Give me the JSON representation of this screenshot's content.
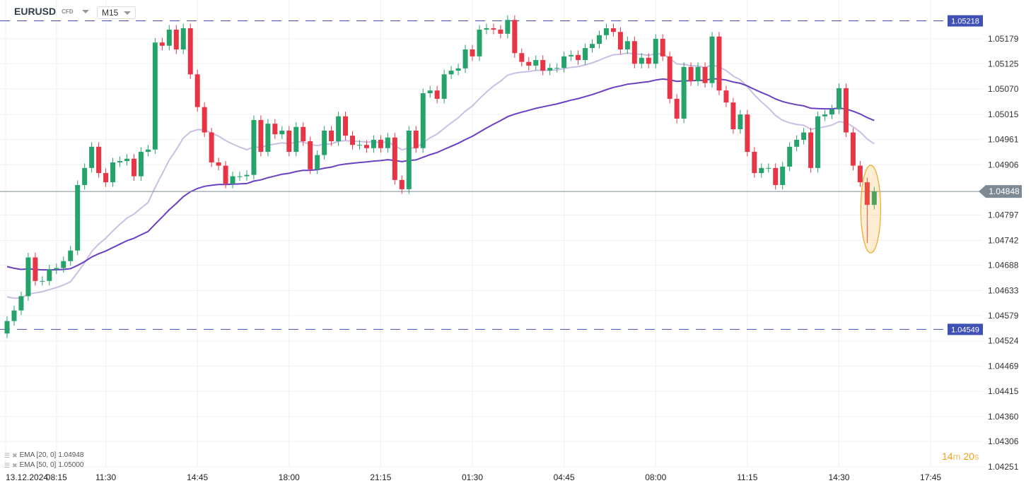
{
  "header": {
    "symbol": "EURUSD",
    "instrument_type": "CFD",
    "timeframe": "M15"
  },
  "indicators": [
    {
      "label": "EMA [20, 0]",
      "value": "1.04948",
      "color": "#c8bfe3"
    },
    {
      "label": "EMA [50, 0]",
      "value": "1.05000",
      "color": "#6a3fc2"
    }
  ],
  "timer": {
    "minutes": "14",
    "min_unit": "m",
    "seconds": "20",
    "sec_unit": "s"
  },
  "colors": {
    "up": "#26a36b",
    "down": "#e83545",
    "level": "#3f51b5",
    "current": "#7d8a93",
    "highlight": "#f5a623"
  },
  "chart_data": {
    "type": "candlestick",
    "symbol": "EURUSD",
    "interval": "15m",
    "ylim": [
      1.0423,
      1.0526
    ],
    "y_ticks": [
      "1.05179",
      "1.05125",
      "1.05070",
      "1.05015",
      "1.04961",
      "1.04906",
      "1.04797",
      "1.04742",
      "1.04688",
      "1.04633",
      "1.04579",
      "1.04524",
      "1.04469",
      "1.04415",
      "1.04360",
      "1.04306",
      "1.04251"
    ],
    "x_ticks": [
      {
        "index": 7,
        "label": "08:15",
        "date": "13.12.2024"
      },
      {
        "index": 14,
        "label": "11:30"
      },
      {
        "index": 27,
        "label": "14:45"
      },
      {
        "index": 40,
        "label": "18:00"
      },
      {
        "index": 53,
        "label": "21:15"
      },
      {
        "index": 66,
        "label": "01:30"
      },
      {
        "index": 79,
        "label": "04:45"
      },
      {
        "index": 92,
        "label": "08:00"
      },
      {
        "index": 105,
        "label": "11:15"
      },
      {
        "index": 118,
        "label": "14:30"
      },
      {
        "index": 131,
        "label": "17:45"
      }
    ],
    "first_open": 1.0454,
    "wick": 0.0001,
    "closes": [
      1.04567,
      1.0459,
      1.04621,
      1.04705,
      1.04654,
      1.04654,
      1.04679,
      1.04682,
      1.04697,
      1.0472,
      1.04862,
      1.04899,
      1.04945,
      1.04888,
      1.04868,
      1.04911,
      1.04914,
      1.04919,
      1.04881,
      1.04934,
      1.04939,
      1.05171,
      1.05164,
      1.05199,
      1.05156,
      1.05202,
      1.05102,
      1.05031,
      1.04976,
      1.04911,
      1.04904,
      1.04865,
      1.04881,
      1.04881,
      1.04884,
      1.05003,
      1.04934,
      1.04995,
      1.04972,
      1.0498,
      1.04934,
      1.04988,
      1.04957,
      1.04896,
      1.04927,
      1.0498,
      1.04957,
      1.05011,
      1.04969,
      1.04949,
      1.04949,
      1.04942,
      1.0496,
      1.04942,
      1.04965,
      1.04873,
      1.04853,
      1.0498,
      1.04942,
      1.05061,
      1.05067,
      1.05049,
      1.05102,
      1.0511,
      1.05115,
      1.05156,
      1.05141,
      1.05199,
      1.05202,
      1.05199,
      1.0519,
      1.0522,
      1.05148,
      1.05129,
      1.05121,
      1.05133,
      1.0511,
      1.05116,
      1.05116,
      1.05141,
      1.05144,
      1.05133,
      1.05159,
      1.05168,
      1.05187,
      1.05202,
      1.05194,
      1.05156,
      1.05174,
      1.05125,
      1.05138,
      1.05125,
      1.05179,
      1.05141,
      1.05049,
      1.05006,
      1.05118,
      1.05087,
      1.05118,
      1.05083,
      1.05184,
      1.05067,
      1.05041,
      1.04983,
      1.05015,
      1.04934,
      1.04888,
      1.04899,
      1.04899,
      1.04862,
      1.04902,
      1.04945,
      1.0496,
      1.04976,
      1.04899,
      1.05011,
      1.05015,
      1.05026,
      1.05072,
      1.04976,
      1.04904,
      1.04868,
      1.04819,
      1.04848
    ],
    "last_lows": {
      "122": 1.04736
    },
    "ema_seeds": {
      "ema20": 1.04625,
      "ema50": 1.0469
    },
    "levels": [
      {
        "price": 1.05218,
        "label": "1.05218"
      },
      {
        "price": 1.04549,
        "label": "1.04549"
      }
    ],
    "current_price": {
      "price": 1.04848,
      "label": "1.04848"
    },
    "highlight_candles": [
      122,
      123
    ]
  }
}
